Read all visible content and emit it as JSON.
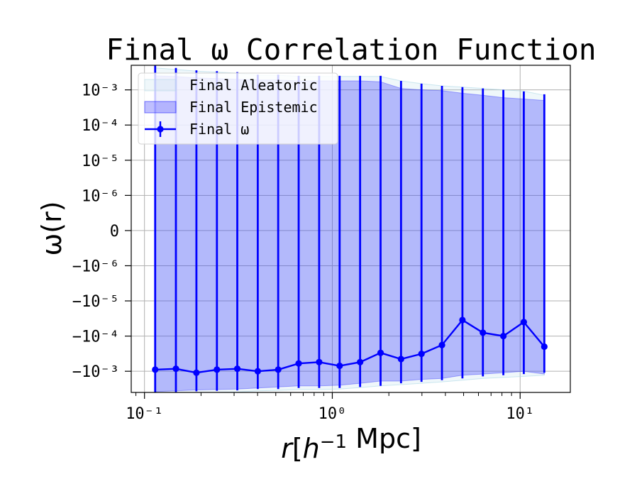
{
  "chart_data": {
    "type": "line",
    "title": "Final ω Correlation Function",
    "xlabel": "r[h⁻¹ Mpc]",
    "ylabel": "ω(r)",
    "xscale": "log",
    "yscale": "symlog",
    "symlog_linthresh": 1e-06,
    "xlim": [
      0.085,
      18.5
    ],
    "ylim": [
      -0.004,
      0.005
    ],
    "grid": true,
    "legend_position": "top-left",
    "x_ticks": [
      {
        "value": 0.1,
        "label": "10⁻¹"
      },
      {
        "value": 1,
        "label": "10⁰"
      },
      {
        "value": 10,
        "label": "10¹"
      }
    ],
    "y_ticks": [
      {
        "value": 0.001,
        "label": "10⁻³"
      },
      {
        "value": 0.0001,
        "label": "10⁻⁴"
      },
      {
        "value": 1e-05,
        "label": "10⁻⁵"
      },
      {
        "value": 1e-06,
        "label": "10⁻⁶"
      },
      {
        "value": 0,
        "label": "0"
      },
      {
        "value": -1e-06,
        "label": "−10⁻⁶"
      },
      {
        "value": -1e-05,
        "label": "−10⁻⁵"
      },
      {
        "value": -0.0001,
        "label": "−10⁻⁴"
      },
      {
        "value": -0.001,
        "label": "−10⁻³"
      }
    ],
    "x": [
      0.114,
      0.147,
      0.189,
      0.243,
      0.312,
      0.401,
      0.515,
      0.662,
      0.851,
      1.094,
      1.406,
      1.807,
      2.322,
      2.984,
      3.835,
      4.929,
      6.334,
      8.141,
      10.46,
      13.45
    ],
    "series": [
      {
        "name": "Final ω",
        "role": "line_with_errorbars",
        "color": "#0000ff",
        "values": [
          -0.0009,
          -0.00085,
          -0.0011,
          -0.0009,
          -0.00085,
          -0.001,
          -0.0009,
          -0.0006,
          -0.00055,
          -0.0007,
          -0.00055,
          -0.0003,
          -0.00045,
          -0.00032,
          -0.00018,
          -3.5e-05,
          -8e-05,
          -0.0001,
          -4e-05,
          -0.0002
        ],
        "err_upper": [
          0.0054,
          0.0042,
          0.0036,
          0.0034,
          0.0032,
          0.0027,
          0.0027,
          0.0025,
          0.0025,
          0.0025,
          0.0025,
          0.0025,
          0.0018,
          0.0015,
          0.0013,
          0.0012,
          0.0011,
          0.001,
          0.0009,
          0.00075
        ],
        "err_lower": [
          -0.0046,
          -0.0041,
          -0.0037,
          -0.0036,
          -0.0035,
          -0.0032,
          -0.0032,
          -0.003,
          -0.003,
          -0.003,
          -0.0028,
          -0.0026,
          -0.0022,
          -0.002,
          -0.0018,
          -0.0016,
          -0.0014,
          -0.0013,
          -0.0012,
          -0.0011
        ]
      },
      {
        "name": "Final Epistemic",
        "role": "band",
        "color": "#0000ff",
        "opacity": 0.25,
        "upper": [
          0.0025,
          0.0024,
          0.0022,
          0.0021,
          0.002,
          0.0019,
          0.0019,
          0.0018,
          0.0018,
          0.0018,
          0.0018,
          0.0017,
          0.0011,
          0.001,
          0.00095,
          0.0008,
          0.0007,
          0.0006,
          0.00055,
          0.0005
        ],
        "lower": [
          -0.0038,
          -0.0036,
          -0.0034,
          -0.0033,
          -0.0032,
          -0.003,
          -0.0028,
          -0.0026,
          -0.0026,
          -0.0025,
          -0.0022,
          -0.0019,
          -0.0019,
          -0.0017,
          -0.0016,
          -0.0013,
          -0.0012,
          -0.0011,
          -0.001,
          -0.0012
        ]
      },
      {
        "name": "Final Aleatoric",
        "role": "band",
        "color": "#add8e6",
        "opacity": 0.2,
        "upper": [
          0.0042,
          0.0038,
          0.0034,
          0.0032,
          0.003,
          0.0026,
          0.0026,
          0.0024,
          0.0024,
          0.0024,
          0.0024,
          0.0024,
          0.0018,
          0.0015,
          0.0013,
          0.0012,
          0.0011,
          0.001,
          0.00092,
          0.0007
        ],
        "lower": [
          -0.0048,
          -0.0045,
          -0.0042,
          -0.004,
          -0.0039,
          -0.0036,
          -0.0035,
          -0.0033,
          -0.0033,
          -0.0032,
          -0.0029,
          -0.0026,
          -0.0024,
          -0.0022,
          -0.002,
          -0.0018,
          -0.0016,
          -0.0015,
          -0.0014,
          -0.0013
        ]
      }
    ],
    "legend_entries": [
      "Final Aleatoric",
      "Final Epistemic",
      "Final ω"
    ]
  }
}
